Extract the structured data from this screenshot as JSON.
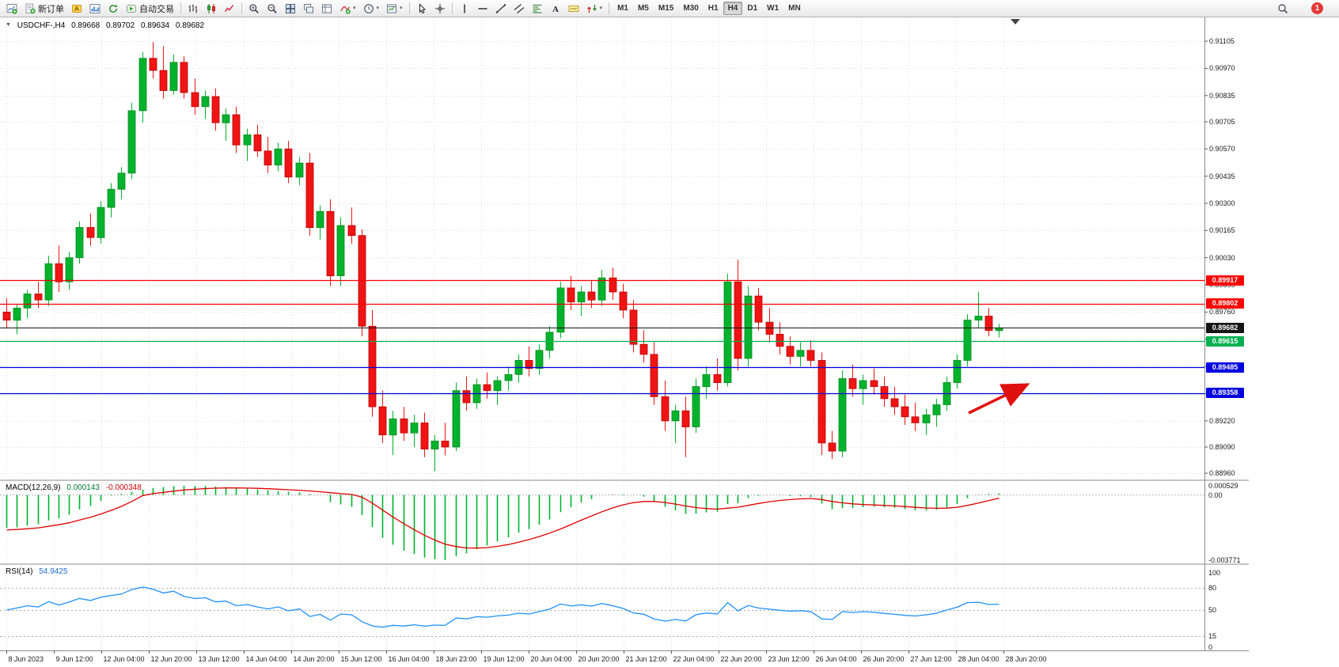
{
  "toolbar": {
    "buttons": [
      {
        "icon": "new-chart-icon"
      },
      {
        "icon": "new-order-icon",
        "label": "新订单"
      },
      {
        "icon": "metaeditor-icon"
      },
      {
        "icon": "market-watch-icon"
      },
      {
        "icon": "refresh-icon"
      },
      {
        "icon": "autotrading-icon",
        "label": "自动交易"
      },
      {
        "sep": true
      },
      {
        "icon": "bar-chart-icon"
      },
      {
        "icon": "candlestick-chart-icon"
      },
      {
        "icon": "line-chart-icon"
      },
      {
        "sep": true
      },
      {
        "icon": "zoom-in-icon"
      },
      {
        "icon": "zoom-out-icon"
      },
      {
        "icon": "tile-windows-icon"
      },
      {
        "icon": "arrange-charts-icon"
      },
      {
        "icon": "align-chart-icon"
      },
      {
        "icon": "indicators-icon",
        "dropdown": true
      },
      {
        "icon": "periods-icon",
        "dropdown": true
      },
      {
        "icon": "templates-icon",
        "dropdown": true
      },
      {
        "sep": true
      },
      {
        "icon": "cursor-icon"
      },
      {
        "icon": "crosshair-icon"
      },
      {
        "sep": true
      },
      {
        "icon": "vertical-line-icon"
      },
      {
        "icon": "horizontal-line-icon"
      },
      {
        "icon": "trendline-icon"
      },
      {
        "icon": "channel-icon"
      },
      {
        "icon": "fibonacci-icon"
      },
      {
        "icon": "text-icon"
      },
      {
        "icon": "text-label-icon"
      },
      {
        "icon": "arrows-icon",
        "dropdown": true
      }
    ],
    "timeframes": [
      "M1",
      "M5",
      "M15",
      "M30",
      "H1",
      "H4",
      "D1",
      "W1",
      "MN"
    ],
    "active_timeframe": "H4",
    "notification_count": "1"
  },
  "chart": {
    "title": "USDCHF-,H4",
    "open": "0.89668",
    "high": "0.89702",
    "low": "0.89634",
    "close": "0.89682",
    "price_axis": [
      "0.91105",
      "0.90970",
      "0.90835",
      "0.90705",
      "0.90570",
      "0.90435",
      "0.90300",
      "0.90165",
      "0.90030",
      "0.89895",
      "0.89760",
      "0.89625",
      "0.89490",
      "0.89355",
      "0.89220",
      "0.89090",
      "0.88960"
    ],
    "time_axis": [
      "8 Jun 2023",
      "9 Jun 12:00",
      "12 Jun 04:00",
      "12 Jun 20:00",
      "13 Jun 12:00",
      "14 Jun 04:00",
      "14 Jun 20:00",
      "15 Jun 12:00",
      "16 Jun 04:00",
      "18 Jun 23:00",
      "19 Jun 12:00",
      "20 Jun 04:00",
      "20 Jun 20:00",
      "21 Jun 12:00",
      "22 Jun 04:00",
      "22 Jun 20:00",
      "23 Jun 12:00",
      "26 Jun 04:00",
      "26 Jun 20:00",
      "27 Jun 12:00",
      "28 Jun 04:00",
      "28 Jun 20:00"
    ]
  },
  "macd": {
    "label": "MACD(12,26,9)",
    "value_main": "0.000143",
    "value_signal": "-0.000348",
    "axis_max": "0.000529",
    "axis_zero": "0.00",
    "axis_min": "-0.003771"
  },
  "rsi": {
    "label": "RSI(14)",
    "value": "54.9425",
    "axis": [
      "100",
      "80",
      "50",
      "15",
      "0"
    ],
    "levels": [
      80,
      50,
      15
    ]
  },
  "colors": {
    "candle_up": "#00B22C",
    "candle_up_stroke": "#008A1E",
    "candle_down": "#F01414",
    "candle_down_stroke": "#B80000",
    "macd_histogram": "#00B22C",
    "macd_signal": "#E00000",
    "rsi_line": "#1E90FF",
    "grid": "#dcdcdc",
    "annotation_arrow": "#E01010"
  },
  "chart_data": {
    "type": "candlestick",
    "symbol": "USDCHF-",
    "timeframe": "H4",
    "current_bar": {
      "open": 0.89668,
      "high": 0.89702,
      "low": 0.89634,
      "close": 0.89682
    },
    "price_range_visible": [
      0.8896,
      0.91105
    ],
    "candles": [
      [
        0.8976,
        0.8983,
        0.8968,
        0.8972
      ],
      [
        0.8972,
        0.898,
        0.8965,
        0.8978
      ],
      [
        0.8978,
        0.8987,
        0.8973,
        0.8985
      ],
      [
        0.8985,
        0.8991,
        0.8978,
        0.8982
      ],
      [
        0.8982,
        0.9004,
        0.8979,
        0.9
      ],
      [
        0.9,
        0.9009,
        0.8986,
        0.8991
      ],
      [
        0.8991,
        0.9006,
        0.8987,
        0.9003
      ],
      [
        0.9003,
        0.9021,
        0.9,
        0.9018
      ],
      [
        0.9018,
        0.9025,
        0.9009,
        0.9013
      ],
      [
        0.9013,
        0.9031,
        0.901,
        0.9028
      ],
      [
        0.9028,
        0.904,
        0.9023,
        0.9037
      ],
      [
        0.9037,
        0.9048,
        0.9032,
        0.9045
      ],
      [
        0.9045,
        0.908,
        0.9042,
        0.9076
      ],
      [
        0.9076,
        0.9105,
        0.907,
        0.9102
      ],
      [
        0.9102,
        0.911,
        0.9092,
        0.9096
      ],
      [
        0.9096,
        0.9108,
        0.9082,
        0.9086
      ],
      [
        0.9086,
        0.9104,
        0.9084,
        0.91
      ],
      [
        0.91,
        0.9103,
        0.9082,
        0.9085
      ],
      [
        0.9085,
        0.9092,
        0.9074,
        0.9078
      ],
      [
        0.9078,
        0.9086,
        0.9072,
        0.9083
      ],
      [
        0.9083,
        0.9087,
        0.9066,
        0.907
      ],
      [
        0.907,
        0.9077,
        0.9061,
        0.9074
      ],
      [
        0.9074,
        0.9078,
        0.9055,
        0.9059
      ],
      [
        0.9059,
        0.9067,
        0.9051,
        0.9064
      ],
      [
        0.9064,
        0.9069,
        0.9053,
        0.9056
      ],
      [
        0.9056,
        0.9063,
        0.9045,
        0.9049
      ],
      [
        0.9049,
        0.906,
        0.9046,
        0.9057
      ],
      [
        0.9057,
        0.9061,
        0.904,
        0.9043
      ],
      [
        0.9043,
        0.9053,
        0.9039,
        0.905
      ],
      [
        0.905,
        0.9055,
        0.9014,
        0.9018
      ],
      [
        0.9018,
        0.9029,
        0.9012,
        0.9026
      ],
      [
        0.9026,
        0.9032,
        0.8989,
        0.8994
      ],
      [
        0.8994,
        0.9023,
        0.8989,
        0.9019
      ],
      [
        0.9019,
        0.9028,
        0.901,
        0.9014
      ],
      [
        0.9014,
        0.9017,
        0.8964,
        0.8969
      ],
      [
        0.8969,
        0.8977,
        0.8924,
        0.8929
      ],
      [
        0.8929,
        0.8937,
        0.8911,
        0.8915
      ],
      [
        0.8915,
        0.8927,
        0.8905,
        0.8923
      ],
      [
        0.8923,
        0.8929,
        0.8912,
        0.8916
      ],
      [
        0.8916,
        0.8925,
        0.8909,
        0.8921
      ],
      [
        0.8921,
        0.8926,
        0.8904,
        0.8908
      ],
      [
        0.8908,
        0.8915,
        0.8897,
        0.8912
      ],
      [
        0.8912,
        0.8921,
        0.8905,
        0.8909
      ],
      [
        0.8909,
        0.8941,
        0.8907,
        0.8937
      ],
      [
        0.8937,
        0.8944,
        0.8927,
        0.8931
      ],
      [
        0.8931,
        0.8943,
        0.8928,
        0.894
      ],
      [
        0.894,
        0.8946,
        0.8933,
        0.8937
      ],
      [
        0.8937,
        0.8944,
        0.893,
        0.8942
      ],
      [
        0.8942,
        0.8949,
        0.8937,
        0.8945
      ],
      [
        0.8945,
        0.8955,
        0.8941,
        0.8952
      ],
      [
        0.8952,
        0.8959,
        0.8944,
        0.8948
      ],
      [
        0.8948,
        0.896,
        0.8945,
        0.8957
      ],
      [
        0.8957,
        0.8969,
        0.8953,
        0.8966
      ],
      [
        0.8966,
        0.8991,
        0.8963,
        0.8988
      ],
      [
        0.8988,
        0.8994,
        0.8977,
        0.8981
      ],
      [
        0.8981,
        0.8989,
        0.8974,
        0.8986
      ],
      [
        0.8986,
        0.8992,
        0.8978,
        0.8982
      ],
      [
        0.8982,
        0.8997,
        0.8979,
        0.8993
      ],
      [
        0.8993,
        0.8998,
        0.8982,
        0.8986
      ],
      [
        0.8986,
        0.899,
        0.8973,
        0.8977
      ],
      [
        0.8977,
        0.8982,
        0.8956,
        0.896
      ],
      [
        0.896,
        0.8967,
        0.8951,
        0.8955
      ],
      [
        0.8955,
        0.8961,
        0.893,
        0.8934
      ],
      [
        0.8934,
        0.8942,
        0.8917,
        0.8922
      ],
      [
        0.8922,
        0.893,
        0.8911,
        0.8927
      ],
      [
        0.8927,
        0.8934,
        0.8904,
        0.8919
      ],
      [
        0.8919,
        0.8943,
        0.8916,
        0.8939
      ],
      [
        0.8939,
        0.8949,
        0.8933,
        0.8945
      ],
      [
        0.8945,
        0.8953,
        0.8937,
        0.8941
      ],
      [
        0.8941,
        0.8995,
        0.8939,
        0.8991
      ],
      [
        0.8991,
        0.9002,
        0.8947,
        0.8953
      ],
      [
        0.8953,
        0.8989,
        0.8949,
        0.8984
      ],
      [
        0.8984,
        0.8988,
        0.8967,
        0.8971
      ],
      [
        0.8971,
        0.8978,
        0.8961,
        0.8965
      ],
      [
        0.8965,
        0.8971,
        0.8955,
        0.8959
      ],
      [
        0.8959,
        0.8964,
        0.895,
        0.8954
      ],
      [
        0.8954,
        0.8961,
        0.8949,
        0.8957
      ],
      [
        0.8957,
        0.8962,
        0.8949,
        0.8952
      ],
      [
        0.8952,
        0.8956,
        0.8905,
        0.8911
      ],
      [
        0.8911,
        0.8917,
        0.8903,
        0.8907
      ],
      [
        0.8907,
        0.8947,
        0.8904,
        0.8943
      ],
      [
        0.8943,
        0.895,
        0.8934,
        0.8938
      ],
      [
        0.8938,
        0.8945,
        0.893,
        0.8942
      ],
      [
        0.8942,
        0.8948,
        0.8935,
        0.8939
      ],
      [
        0.8939,
        0.8944,
        0.8929,
        0.8933
      ],
      [
        0.8933,
        0.8939,
        0.8925,
        0.8929
      ],
      [
        0.8929,
        0.8935,
        0.892,
        0.8924
      ],
      [
        0.8924,
        0.8931,
        0.8917,
        0.8921
      ],
      [
        0.8921,
        0.8928,
        0.8915,
        0.8925
      ],
      [
        0.8925,
        0.8933,
        0.8919,
        0.893
      ],
      [
        0.893,
        0.8944,
        0.8927,
        0.8941
      ],
      [
        0.8941,
        0.8955,
        0.8938,
        0.8952
      ],
      [
        0.8952,
        0.8975,
        0.8949,
        0.8972
      ],
      [
        0.8972,
        0.8986,
        0.8968,
        0.8974
      ],
      [
        0.8974,
        0.8978,
        0.8964,
        0.89668
      ],
      [
        0.89668,
        0.89702,
        0.89634,
        0.89682
      ]
    ],
    "horizontal_levels": [
      {
        "price": 0.89917,
        "label": "0.89917",
        "color": "#FF0000",
        "role": "resistance"
      },
      {
        "price": 0.89802,
        "label": "0.89802",
        "color": "#FF0000",
        "role": "resistance"
      },
      {
        "price": 0.89682,
        "label": "0.89682",
        "color": "#151515",
        "role": "current-price"
      },
      {
        "price": 0.89615,
        "label": "0.89615",
        "color": "#00B050",
        "role": "level"
      },
      {
        "price": 0.89485,
        "label": "0.89485",
        "color": "#0000E0",
        "role": "support"
      },
      {
        "price": 0.89358,
        "label": "0.89358",
        "color": "#0000E0",
        "role": "support"
      }
    ],
    "indicators": [
      {
        "name": "MACD",
        "params": [
          12,
          26,
          9
        ],
        "current_main": 0.000143,
        "current_signal": -0.000348,
        "scale_max": 0.000529,
        "scale_min": -0.003771
      },
      {
        "name": "RSI",
        "params": [
          14
        ],
        "current": 54.9425,
        "levels": [
          80,
          50,
          15
        ],
        "scale": [
          0,
          100
        ]
      }
    ],
    "annotations": [
      {
        "type": "arrow",
        "color": "#E01010",
        "direction": "up-right",
        "note": "red arrow pointing toward support zone under last candles"
      }
    ]
  }
}
